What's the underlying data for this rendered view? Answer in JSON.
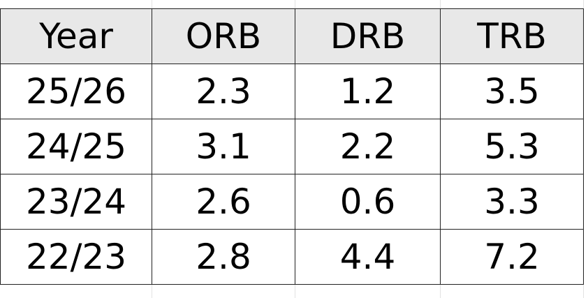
{
  "table": {
    "header": [
      "Year",
      "ORB",
      "DRB",
      "TRB"
    ],
    "rows": [
      [
        "25/26",
        "2.3",
        "1.2",
        "3.5"
      ],
      [
        "24/25",
        "3.1",
        "2.2",
        "5.3"
      ],
      [
        "23/24",
        "2.6",
        "0.6",
        "3.3"
      ],
      [
        "22/23",
        "2.8",
        "4.4",
        "7.2"
      ]
    ]
  }
}
